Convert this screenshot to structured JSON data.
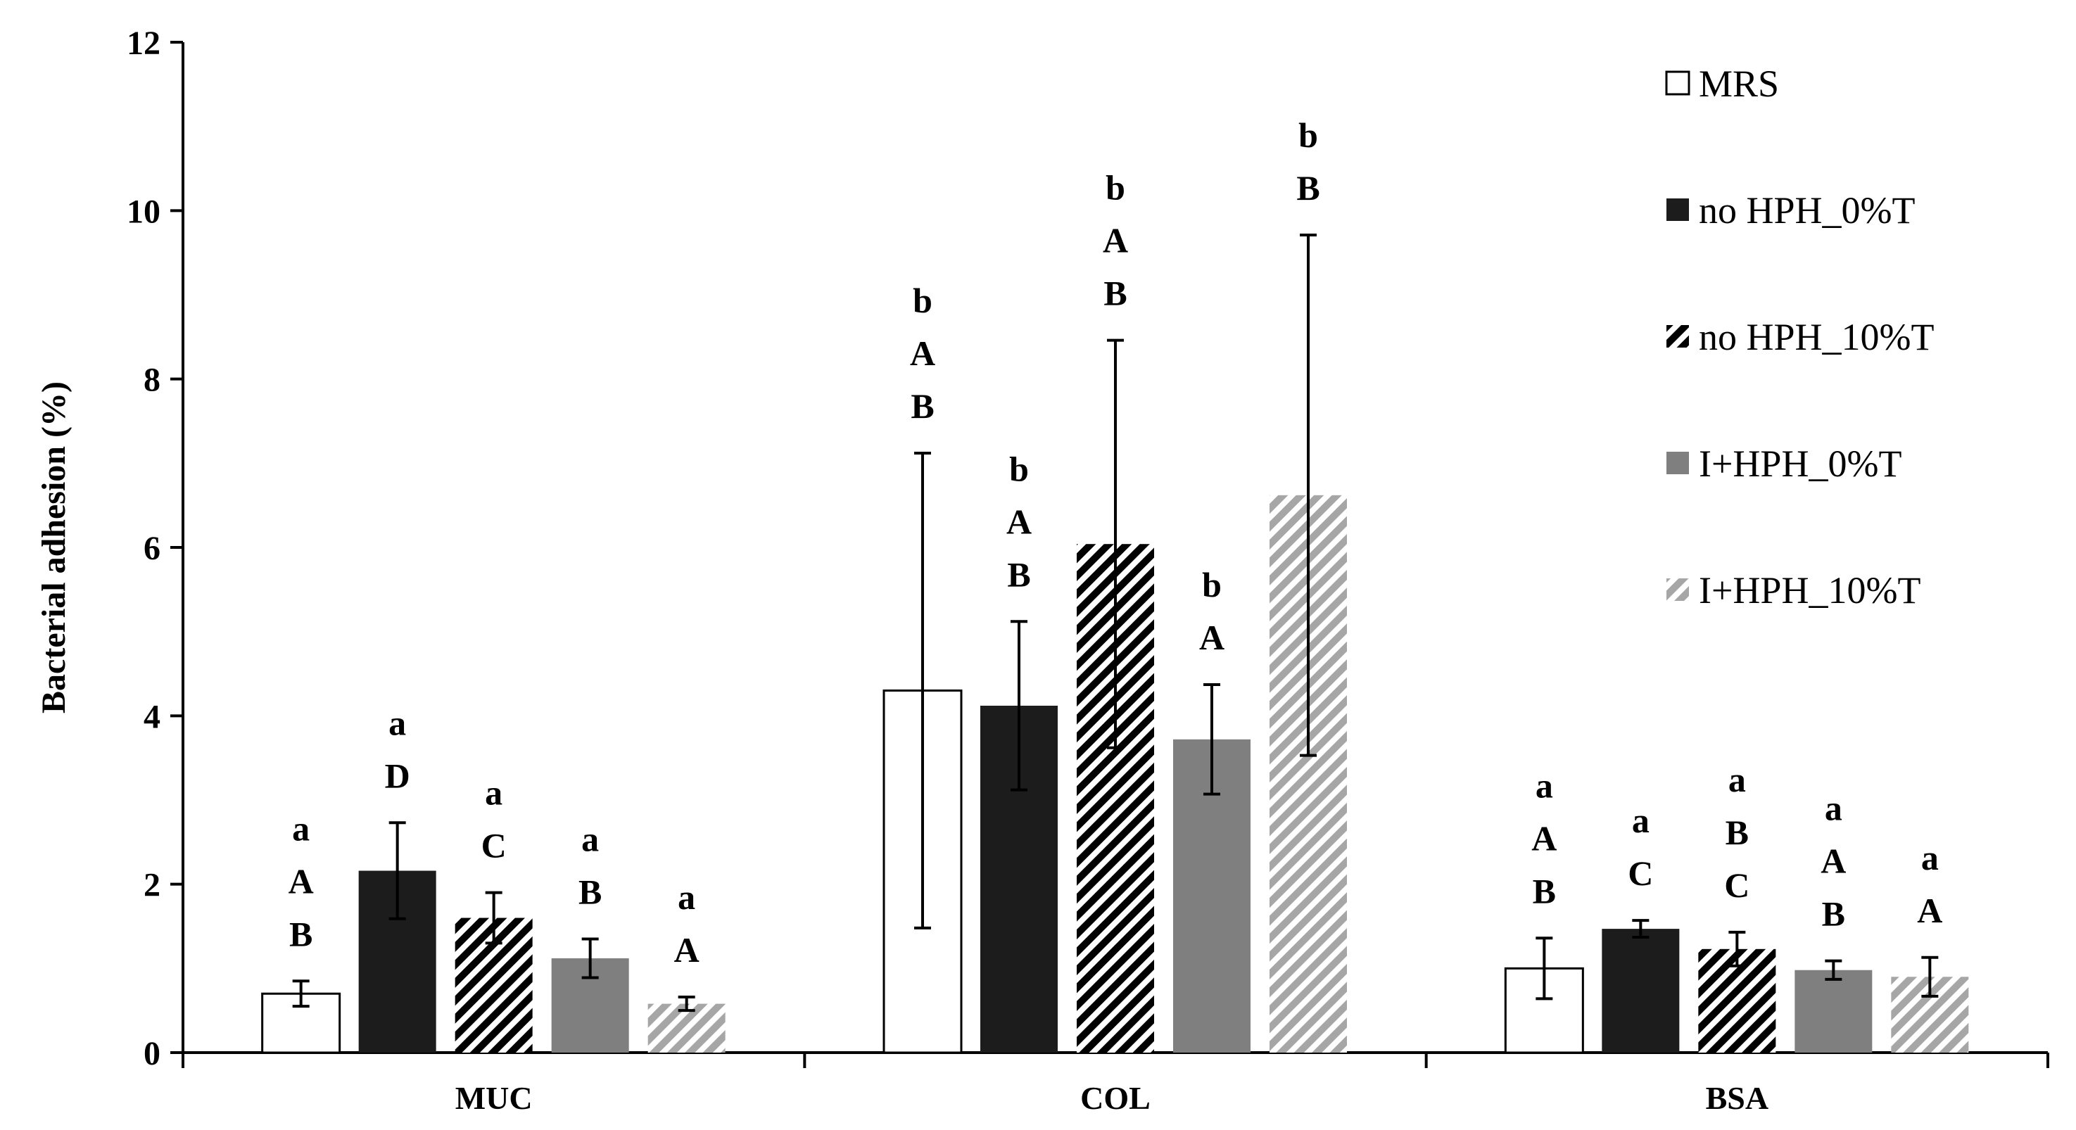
{
  "chart_data": {
    "type": "bar",
    "title": "",
    "xlabel": "",
    "ylabel": "Bacterial adhesion (%)",
    "ylim": [
      0,
      12
    ],
    "yticks": [
      0,
      2,
      4,
      6,
      8,
      10,
      12
    ],
    "grid": false,
    "legend_position": "top-right",
    "categories": [
      "MUC",
      "COL",
      "BSA"
    ],
    "series": [
      {
        "name": "MRS",
        "fill": "white",
        "color": "#ffffff",
        "values": [
          0.7,
          4.3,
          1.0
        ],
        "errors": [
          0.15,
          2.82,
          0.36
        ],
        "sig_labels": [
          [
            "a",
            "A",
            "B"
          ],
          [
            "b",
            "A",
            "B"
          ],
          [
            "a",
            "A",
            "B"
          ]
        ]
      },
      {
        "name": "no HPH_0%T",
        "fill": "solid",
        "color": "#1c1c1c",
        "values": [
          2.16,
          4.12,
          1.47
        ],
        "errors": [
          0.57,
          1.0,
          0.1
        ],
        "sig_labels": [
          [
            "a",
            "D"
          ],
          [
            "b",
            "A",
            "B"
          ],
          [
            "a",
            "C"
          ]
        ]
      },
      {
        "name": "no HPH_10%T",
        "fill": "hatch-dark",
        "color": "#000000",
        "values": [
          1.6,
          6.04,
          1.23
        ],
        "errors": [
          0.3,
          2.42,
          0.2
        ],
        "sig_labels": [
          [
            "a",
            "C"
          ],
          [
            "b",
            "A",
            "B"
          ],
          [
            "a",
            "B",
            "C"
          ]
        ]
      },
      {
        "name": "I+HPH_0%T",
        "fill": "solid",
        "color": "#7f7f7f",
        "values": [
          1.12,
          3.72,
          0.98
        ],
        "errors": [
          0.23,
          0.65,
          0.11
        ],
        "sig_labels": [
          [
            "a",
            "B"
          ],
          [
            "b",
            "A"
          ],
          [
            "a",
            "A",
            "B"
          ]
        ]
      },
      {
        "name": "I+HPH_10%T",
        "fill": "hatch-light",
        "color": "#a6a6a6",
        "values": [
          0.58,
          6.62,
          0.9
        ],
        "errors": [
          0.08,
          3.09,
          0.23
        ],
        "sig_labels": [
          [
            "a",
            "A"
          ],
          [
            "b",
            "B"
          ],
          [
            "a",
            "A"
          ]
        ]
      }
    ]
  }
}
